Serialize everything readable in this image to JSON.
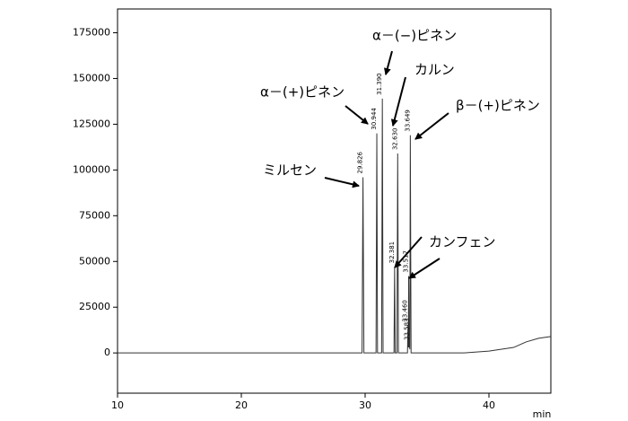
{
  "chart_data": {
    "type": "line",
    "x_label": "min",
    "x": [
      10,
      28,
      29.75,
      29.826,
      29.9,
      30.88,
      30.944,
      31.0,
      31.33,
      31.39,
      31.45,
      32.33,
      32.381,
      32.43,
      32.57,
      32.63,
      32.69,
      33.42,
      33.46,
      33.49,
      33.517,
      33.55,
      33.583,
      33.61,
      33.649,
      33.71,
      38,
      40,
      42,
      43,
      44,
      45
    ],
    "series": [
      {
        "color": "#333333",
        "values": [
          0,
          0,
          0,
          96000,
          0,
          0,
          120000,
          0,
          0,
          139000,
          0,
          0,
          47000,
          0,
          0,
          109000,
          0,
          0,
          15000,
          3000,
          42000,
          3000,
          5000,
          2000,
          119000,
          0,
          0,
          1000,
          3000,
          6000,
          8000,
          9000
        ]
      }
    ],
    "xlim": [
      10,
      45
    ],
    "xticks": [
      10,
      20,
      30,
      40
    ],
    "ylim": [
      -22000,
      188000
    ],
    "yticks": [
      0,
      25000,
      50000,
      75000,
      100000,
      125000,
      150000,
      175000
    ],
    "peak_labels": [
      {
        "text": "29.826",
        "x": 29.826,
        "y": 96000
      },
      {
        "text": "30.944",
        "x": 30.944,
        "y": 120000
      },
      {
        "text": "31.390",
        "x": 31.39,
        "y": 139000
      },
      {
        "text": "32.381",
        "x": 32.381,
        "y": 47000
      },
      {
        "text": "32.630",
        "x": 32.63,
        "y": 109000
      },
      {
        "text": "33.517",
        "x": 33.517,
        "y": 42000
      },
      {
        "text": "33.649",
        "x": 33.649,
        "y": 119000
      },
      {
        "text": "33.460",
        "x": 33.46,
        "y": 15000
      },
      {
        "text": "33.583",
        "x": 33.583,
        "y": 5000
      }
    ],
    "compounds": [
      {
        "text": "ミルセン",
        "color": "#2a2ad0"
      },
      {
        "text": "α－(+)ピネン",
        "color": "#e8a000"
      },
      {
        "text": "α－(−)ピネン",
        "color": "#e8a000"
      },
      {
        "text": "カルン",
        "color": "#2a2ad0"
      },
      {
        "text": "β－(+)ピネン",
        "color": "#2a2ad0"
      },
      {
        "text": "カンフェン",
        "color": "#2a2ad0"
      }
    ]
  }
}
